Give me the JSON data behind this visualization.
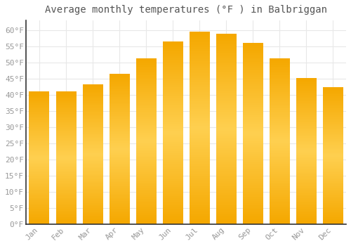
{
  "title": "Average monthly temperatures (°F ) in Balbriggan",
  "months": [
    "Jan",
    "Feb",
    "Mar",
    "Apr",
    "May",
    "Jun",
    "Jul",
    "Aug",
    "Sep",
    "Oct",
    "Nov",
    "Dec"
  ],
  "values": [
    41.0,
    41.0,
    43.2,
    46.4,
    51.1,
    56.3,
    59.4,
    58.8,
    55.9,
    51.1,
    45.0,
    42.3
  ],
  "bar_color_center": "#FFD050",
  "bar_color_edge": "#F5A800",
  "ylim": [
    0,
    63
  ],
  "yticks": [
    0,
    5,
    10,
    15,
    20,
    25,
    30,
    35,
    40,
    45,
    50,
    55,
    60
  ],
  "ytick_labels": [
    "0°F",
    "5°F",
    "10°F",
    "15°F",
    "20°F",
    "25°F",
    "30°F",
    "35°F",
    "40°F",
    "45°F",
    "50°F",
    "55°F",
    "60°F"
  ],
  "background_color": "#FFFFFF",
  "grid_color": "#E8E8E8",
  "title_fontsize": 10,
  "tick_fontsize": 8,
  "tick_color": "#999999",
  "spine_color": "#333333",
  "font_family": "monospace"
}
